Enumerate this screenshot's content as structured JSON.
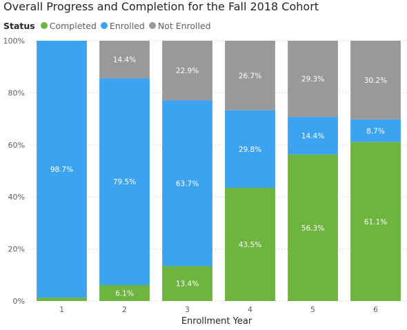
{
  "chart_data": {
    "type": "bar",
    "stacked": "100%",
    "title": "Overall Progress and Completion for the Fall 2018 Cohort",
    "legend_title": "Status",
    "legend_position": "top-left",
    "xlabel": "Enrollment Year",
    "ylabel": "",
    "categories": [
      "1",
      "2",
      "3",
      "4",
      "5",
      "6"
    ],
    "ylim": [
      0,
      100
    ],
    "yticks": [
      "0%",
      "20%",
      "40%",
      "60%",
      "80%",
      "100%"
    ],
    "grid": true,
    "series": [
      {
        "name": "Completed",
        "color": "#6db53f",
        "values": [
          1.3,
          6.1,
          13.4,
          43.5,
          56.3,
          61.1
        ],
        "labels": [
          "",
          "6.1%",
          "13.4%",
          "43.5%",
          "56.3%",
          "61.1%"
        ]
      },
      {
        "name": "Enrolled",
        "color": "#3ba3ef",
        "values": [
          98.7,
          79.5,
          63.7,
          29.8,
          14.4,
          8.7
        ],
        "labels": [
          "98.7%",
          "79.5%",
          "63.7%",
          "29.8%",
          "14.4%",
          "8.7%"
        ]
      },
      {
        "name": "Not Enrolled",
        "color": "#999999",
        "values": [
          0,
          14.4,
          22.9,
          26.7,
          29.3,
          30.2
        ],
        "labels": [
          "",
          "14.4%",
          "22.9%",
          "26.7%",
          "29.3%",
          "30.2%"
        ]
      }
    ]
  }
}
